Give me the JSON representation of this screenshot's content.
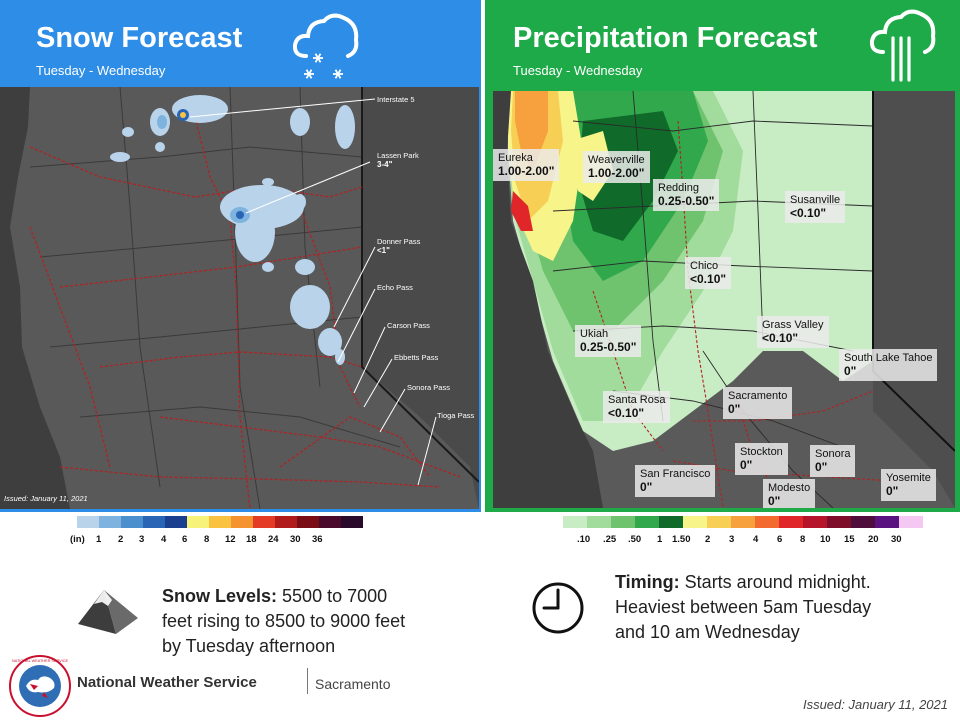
{
  "snow": {
    "title": "Snow Forecast",
    "subtitle": "Tuesday - Wednesday",
    "issued_small": "Issued: January 11, 2021",
    "callouts": [
      {
        "name": "Interstate 5",
        "amount": ""
      },
      {
        "name": "Lassen Park",
        "amount": "3-4\""
      },
      {
        "name": "Donner Pass",
        "amount": "<1\""
      },
      {
        "name": "Echo Pass",
        "amount": ""
      },
      {
        "name": "Carson Pass",
        "amount": ""
      },
      {
        "name": "Ebbetts Pass",
        "amount": ""
      },
      {
        "name": "Sonora Pass",
        "amount": ""
      },
      {
        "name": "Tioga Pass",
        "amount": ""
      }
    ],
    "legend": {
      "unit": "(in)",
      "labels": [
        "1",
        "2",
        "3",
        "4",
        "6",
        "8",
        "12",
        "18",
        "24",
        "30",
        "36"
      ],
      "colors": [
        "#b9d3ea",
        "#7fb3df",
        "#4b8fcf",
        "#2a64b4",
        "#1b3f8f",
        "#f6f27a",
        "#f9c241",
        "#f59331",
        "#e33b25",
        "#b01c1c",
        "#7a0c16",
        "#4a0a2c",
        "#2a0a2a"
      ]
    }
  },
  "precip": {
    "title": "Precipitation Forecast",
    "subtitle": "Tuesday - Wednesday",
    "cities": [
      {
        "name": "Eureka",
        "amount": "1.00-2.00\""
      },
      {
        "name": "Weaverville",
        "amount": "1.00-2.00\""
      },
      {
        "name": "Redding",
        "amount": "0.25-0.50\""
      },
      {
        "name": "Susanville",
        "amount": "<0.10\""
      },
      {
        "name": "Chico",
        "amount": "<0.10\""
      },
      {
        "name": "Grass Valley",
        "amount": "<0.10\""
      },
      {
        "name": "Ukiah",
        "amount": "0.25-0.50\""
      },
      {
        "name": "South Lake Tahoe",
        "amount": "0\""
      },
      {
        "name": "Sacramento",
        "amount": "0\""
      },
      {
        "name": "Santa Rosa",
        "amount": "<0.10\""
      },
      {
        "name": "Stockton",
        "amount": "0\""
      },
      {
        "name": "Sonora",
        "amount": "0\""
      },
      {
        "name": "San Francisco",
        "amount": "0\""
      },
      {
        "name": "Modesto",
        "amount": "0\""
      },
      {
        "name": "Yosemite",
        "amount": "0\""
      }
    ],
    "legend": {
      "labels": [
        ".10",
        ".25",
        ".50",
        "1",
        "1.50",
        "2",
        "3",
        "4",
        "6",
        "8",
        "10",
        "15",
        "20",
        "30"
      ],
      "colors": [
        "#c8ecc4",
        "#a2dc9c",
        "#6fc36f",
        "#31a84c",
        "#106b2a",
        "#f7f48a",
        "#f8cf55",
        "#f6a13d",
        "#f36a2f",
        "#e1262a",
        "#b5142a",
        "#7e0d2a",
        "#4e0d3a",
        "#5a1280",
        "#f4c8f2"
      ]
    }
  },
  "snow_levels": {
    "label": "Snow Levels:",
    "line1": " 5500 to 7000",
    "line2": "feet rising to 8500 to 9000 feet",
    "line3": "by Tuesday afternoon"
  },
  "timing": {
    "label": "Timing:",
    "line1": " Starts around midnight.",
    "line2": "Heaviest between 5am Tuesday",
    "line3": "and 10 am Wednesday"
  },
  "footer": {
    "org": "National Weather Service",
    "office": "Sacramento",
    "issued": "Issued: January 11, 2021",
    "logo_text": "NATIONAL WEATHER SERVICE"
  },
  "colors": {
    "snow_header": "#2e8de6",
    "precip_header": "#1faa4a"
  }
}
